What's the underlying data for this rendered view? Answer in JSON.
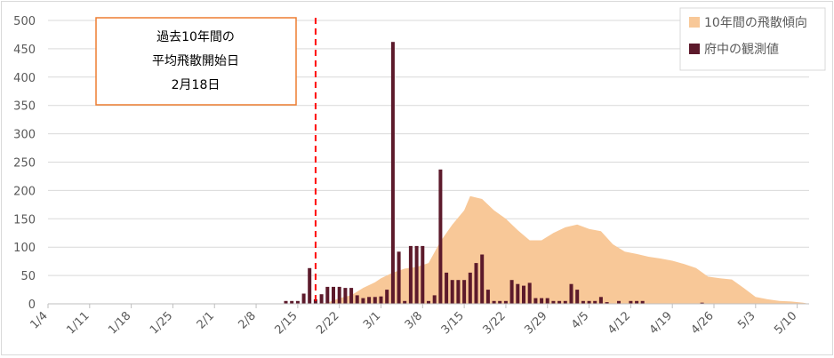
{
  "chart_data": {
    "type": "bar",
    "x_start": "1/4",
    "x_end": "5/12",
    "x_tick_labels": [
      "1/4",
      "1/11",
      "1/18",
      "1/25",
      "2/1",
      "2/8",
      "2/15",
      "2/22",
      "3/1",
      "3/8",
      "3/15",
      "3/22",
      "3/29",
      "4/5",
      "4/12",
      "4/19",
      "4/26",
      "5/3",
      "5/10"
    ],
    "ylim": [
      0,
      500
    ],
    "y_ticks": [
      0,
      50,
      100,
      150,
      200,
      250,
      300,
      350,
      400,
      450,
      500
    ],
    "grid": true,
    "legend_position": "top-right",
    "annotation": {
      "lines": [
        "過去10年間の",
        "平均飛散開始日",
        "2月18日"
      ],
      "date": "2/18",
      "line_color": "#ff0000"
    },
    "series": [
      {
        "name": "10年間の飛散傾向",
        "type": "area",
        "color": "#f8c898",
        "points": [
          [
            "2/18",
            0
          ],
          [
            "2/20",
            2
          ],
          [
            "2/22",
            10
          ],
          [
            "2/24",
            15
          ],
          [
            "2/26",
            28
          ],
          [
            "2/28",
            38
          ],
          [
            "3/1",
            45
          ],
          [
            "3/3",
            55
          ],
          [
            "3/5",
            62
          ],
          [
            "3/7",
            65
          ],
          [
            "3/9",
            72
          ],
          [
            "3/11",
            110
          ],
          [
            "3/13",
            140
          ],
          [
            "3/15",
            165
          ],
          [
            "3/16",
            190
          ],
          [
            "3/18",
            185
          ],
          [
            "3/20",
            165
          ],
          [
            "3/22",
            150
          ],
          [
            "3/24",
            130
          ],
          [
            "3/26",
            112
          ],
          [
            "3/28",
            112
          ],
          [
            "3/30",
            125
          ],
          [
            "4/1",
            135
          ],
          [
            "4/3",
            140
          ],
          [
            "4/5",
            132
          ],
          [
            "4/7",
            128
          ],
          [
            "4/9",
            105
          ],
          [
            "4/11",
            92
          ],
          [
            "4/13",
            88
          ],
          [
            "4/15",
            83
          ],
          [
            "4/17",
            80
          ],
          [
            "4/19",
            76
          ],
          [
            "4/21",
            70
          ],
          [
            "4/23",
            63
          ],
          [
            "4/25",
            48
          ],
          [
            "4/27",
            45
          ],
          [
            "4/29",
            43
          ],
          [
            "5/1",
            28
          ],
          [
            "5/3",
            12
          ],
          [
            "5/5",
            8
          ],
          [
            "5/7",
            5
          ],
          [
            "5/9",
            4
          ],
          [
            "5/11",
            2
          ],
          [
            "5/12",
            0
          ]
        ]
      },
      {
        "name": "府中の観測値",
        "type": "bar",
        "color": "#5c1a2b",
        "points": [
          [
            "2/13",
            5
          ],
          [
            "2/14",
            5
          ],
          [
            "2/15",
            5
          ],
          [
            "2/16",
            18
          ],
          [
            "2/17",
            63
          ],
          [
            "2/18",
            8
          ],
          [
            "2/19",
            17
          ],
          [
            "2/20",
            30
          ],
          [
            "2/21",
            30
          ],
          [
            "2/22",
            30
          ],
          [
            "2/23",
            28
          ],
          [
            "2/24",
            28
          ],
          [
            "2/25",
            15
          ],
          [
            "2/26",
            10
          ],
          [
            "2/27",
            12
          ],
          [
            "2/28",
            12
          ],
          [
            "3/1",
            13
          ],
          [
            "3/2",
            25
          ],
          [
            "3/3",
            462
          ],
          [
            "3/4",
            92
          ],
          [
            "3/5",
            5
          ],
          [
            "3/6",
            102
          ],
          [
            "3/7",
            102
          ],
          [
            "3/8",
            102
          ],
          [
            "3/9",
            5
          ],
          [
            "3/10",
            15
          ],
          [
            "3/11",
            237
          ],
          [
            "3/12",
            55
          ],
          [
            "3/13",
            42
          ],
          [
            "3/14",
            42
          ],
          [
            "3/15",
            42
          ],
          [
            "3/16",
            55
          ],
          [
            "3/17",
            72
          ],
          [
            "3/18",
            87
          ],
          [
            "3/19",
            25
          ],
          [
            "3/20",
            5
          ],
          [
            "3/21",
            5
          ],
          [
            "3/22",
            5
          ],
          [
            "3/23",
            42
          ],
          [
            "3/24",
            35
          ],
          [
            "3/25",
            32
          ],
          [
            "3/26",
            37
          ],
          [
            "3/27",
            10
          ],
          [
            "3/28",
            10
          ],
          [
            "3/29",
            10
          ],
          [
            "3/30",
            5
          ],
          [
            "3/31",
            5
          ],
          [
            "4/1",
            5
          ],
          [
            "4/2",
            35
          ],
          [
            "4/3",
            25
          ],
          [
            "4/4",
            5
          ],
          [
            "4/5",
            5
          ],
          [
            "4/6",
            5
          ],
          [
            "4/7",
            12
          ],
          [
            "4/8",
            3
          ],
          [
            "4/10",
            5
          ],
          [
            "4/12",
            5
          ],
          [
            "4/13",
            5
          ],
          [
            "4/14",
            5
          ],
          [
            "4/24",
            2
          ]
        ]
      }
    ]
  }
}
